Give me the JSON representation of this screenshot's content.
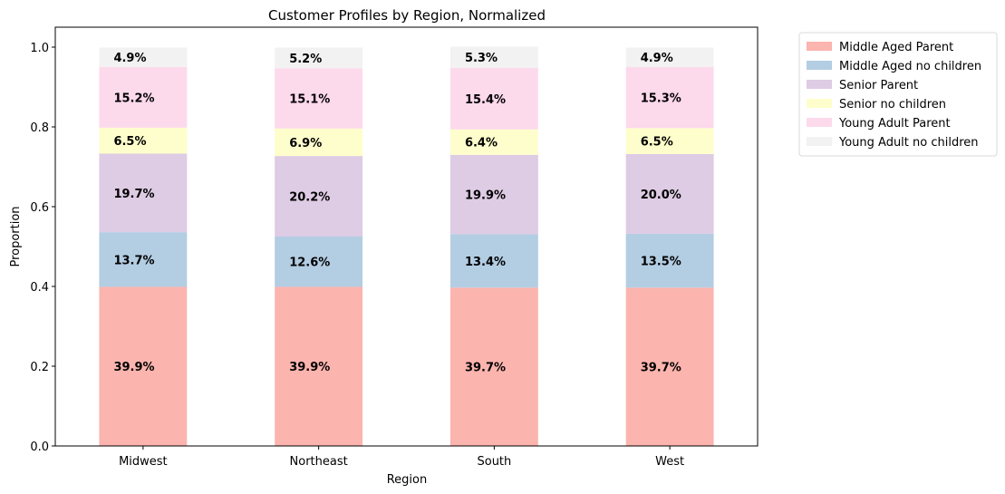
{
  "chart_data": {
    "type": "bar",
    "stacked": true,
    "title": "Customer Profiles by Region, Normalized",
    "xlabel": "Region",
    "ylabel": "Proportion",
    "ylim": [
      0,
      1.05
    ],
    "yticks": [
      0.0,
      0.2,
      0.4,
      0.6,
      0.8,
      1.0
    ],
    "ytick_labels": [
      "0.0",
      "0.2",
      "0.4",
      "0.6",
      "0.8",
      "1.0"
    ],
    "categories": [
      "Midwest",
      "Northeast",
      "South",
      "West"
    ],
    "series": [
      {
        "name": "Middle Aged Parent",
        "color": "#fbb4ae",
        "values": [
          0.399,
          0.399,
          0.397,
          0.397
        ],
        "labels": [
          "39.9%",
          "39.9%",
          "39.7%",
          "39.7%"
        ]
      },
      {
        "name": "Middle Aged no children",
        "color": "#b3cde3",
        "values": [
          0.137,
          0.126,
          0.134,
          0.135
        ],
        "labels": [
          "13.7%",
          "12.6%",
          "13.4%",
          "13.5%"
        ]
      },
      {
        "name": "Senior Parent",
        "color": "#decbe4",
        "values": [
          0.197,
          0.202,
          0.199,
          0.2
        ],
        "labels": [
          "19.7%",
          "20.2%",
          "19.9%",
          "20.0%"
        ]
      },
      {
        "name": "Senior no children",
        "color": "#fefecc",
        "values": [
          0.065,
          0.069,
          0.064,
          0.065
        ],
        "labels": [
          "6.5%",
          "6.9%",
          "6.4%",
          "6.5%"
        ]
      },
      {
        "name": "Young Adult Parent",
        "color": "#fdd9ec",
        "values": [
          0.152,
          0.151,
          0.154,
          0.153
        ],
        "labels": [
          "15.2%",
          "15.1%",
          "15.4%",
          "15.3%"
        ]
      },
      {
        "name": "Young Adult no children",
        "color": "#f2f2f2",
        "values": [
          0.049,
          0.052,
          0.053,
          0.049
        ],
        "labels": [
          "4.9%",
          "5.2%",
          "5.3%",
          "4.9%"
        ]
      }
    ],
    "legend_position": "outside-upper-right",
    "grid": false
  }
}
